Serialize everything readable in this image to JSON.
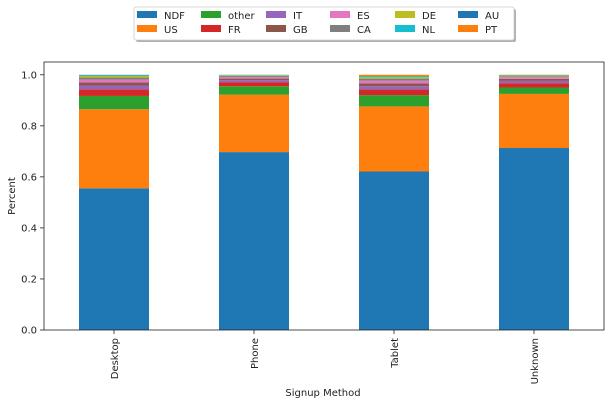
{
  "chart_data": {
    "type": "bar",
    "stacked": true,
    "normalized": true,
    "title": "",
    "xlabel": "Signup Method",
    "ylabel": "Percent",
    "ylim": [
      0,
      1.05
    ],
    "yticks": [
      "0.0",
      "0.2",
      "0.4",
      "0.6",
      "0.8",
      "1.0"
    ],
    "categories": [
      "Desktop",
      "Phone",
      "Tablet",
      "Unknown"
    ],
    "legend_position": "top-center",
    "grid": false,
    "series": [
      {
        "name": "NDF",
        "color": "#1f77b4",
        "values": [
          0.555,
          0.697,
          0.621,
          0.713
        ]
      },
      {
        "name": "US",
        "color": "#ff7f0e",
        "values": [
          0.31,
          0.225,
          0.255,
          0.212
        ]
      },
      {
        "name": "other",
        "color": "#2ca02c",
        "values": [
          0.052,
          0.033,
          0.044,
          0.025
        ]
      },
      {
        "name": "FR",
        "color": "#d62728",
        "values": [
          0.026,
          0.016,
          0.022,
          0.017
        ]
      },
      {
        "name": "IT",
        "color": "#9467bd",
        "values": [
          0.015,
          0.008,
          0.013,
          0.009
        ]
      },
      {
        "name": "GB",
        "color": "#8c564b",
        "values": [
          0.012,
          0.006,
          0.011,
          0.008
        ]
      },
      {
        "name": "ES",
        "color": "#e377c2",
        "values": [
          0.011,
          0.006,
          0.011,
          0.006
        ]
      },
      {
        "name": "CA",
        "color": "#7f7f7f",
        "values": [
          0.008,
          0.004,
          0.008,
          0.004
        ]
      },
      {
        "name": "DE",
        "color": "#bcbd22",
        "values": [
          0.006,
          0.003,
          0.006,
          0.003
        ]
      },
      {
        "name": "NL",
        "color": "#17becf",
        "values": [
          0.004,
          0.002,
          0.004,
          0.002
        ]
      },
      {
        "name": "AU",
        "color": "#1f77b4",
        "values": [
          0.0,
          0.0,
          0.0,
          0.0
        ]
      },
      {
        "name": "PT",
        "color": "#ff7f0e",
        "values": [
          0.001,
          0.0,
          0.005,
          0.001
        ]
      }
    ]
  }
}
